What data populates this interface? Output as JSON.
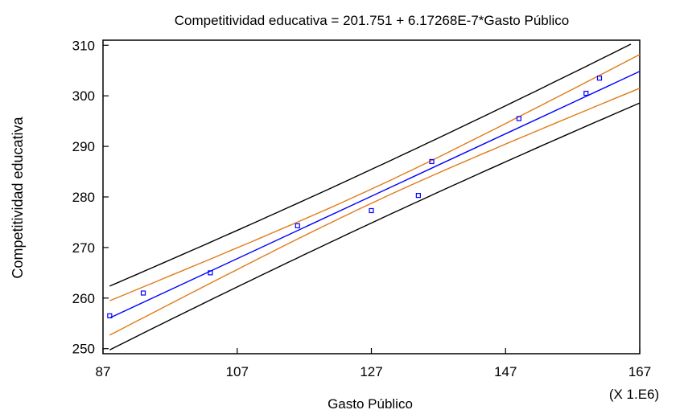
{
  "chart_data": {
    "type": "scatter",
    "title": "Competitividad educativa = 201.751 + 6.17268E-7*Gasto Público",
    "xlabel": "Gasto Público",
    "ylabel": "Competitividad educativa",
    "x_multiplier_label": "(X 1.E6)",
    "xlim": [
      87,
      167
    ],
    "ylim": [
      249,
      311
    ],
    "x_ticks": [
      87,
      107,
      127,
      147,
      167
    ],
    "y_ticks": [
      250,
      260,
      270,
      280,
      290,
      300,
      310
    ],
    "grid": false,
    "points": [
      {
        "x": 88.0,
        "y": 256.5
      },
      {
        "x": 93.0,
        "y": 261.0
      },
      {
        "x": 103.0,
        "y": 265.0
      },
      {
        "x": 116.0,
        "y": 274.3
      },
      {
        "x": 127.0,
        "y": 277.3
      },
      {
        "x": 134.0,
        "y": 280.3
      },
      {
        "x": 136.0,
        "y": 287.0
      },
      {
        "x": 149.0,
        "y": 295.5
      },
      {
        "x": 159.0,
        "y": 300.5
      },
      {
        "x": 161.0,
        "y": 303.5
      }
    ],
    "fit": {
      "intercept": 201.751,
      "slope": 0.617268,
      "x_range": [
        88,
        167
      ]
    },
    "bands": [
      {
        "type": "confidence",
        "color": "#e07b1a",
        "offset_at_ends": 3.4,
        "offset_at_mean": 1.4
      },
      {
        "type": "prediction",
        "color": "#000000",
        "offset_at_ends": 6.3,
        "offset_at_mean": 5.3
      }
    ],
    "x_mean": 128,
    "colors": {
      "points": "#0000ff",
      "fit": "#0000ff",
      "confidence": "#e07b1a",
      "prediction": "#000000"
    }
  }
}
